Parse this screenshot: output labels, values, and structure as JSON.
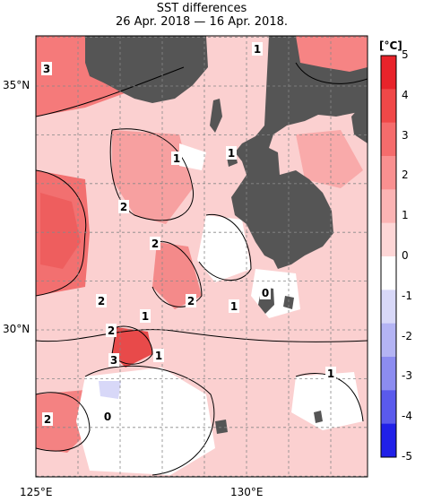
{
  "title_line1": "SST differences",
  "title_line2": "26 Apr. 2018 — 16 Apr. 2018.",
  "unit": "[°C]",
  "lat_labels": [
    {
      "text": "35°N",
      "lat": 35
    },
    {
      "text": "30°N",
      "lat": 30
    }
  ],
  "lon_labels": [
    {
      "text": "125°E",
      "lon": 125
    },
    {
      "text": "130°E",
      "lon": 130
    }
  ],
  "colorbar": {
    "ticks": [
      "5",
      "4",
      "3",
      "2",
      "1",
      "0",
      "-1",
      "-2",
      "-3",
      "-4",
      "-5"
    ],
    "colors": [
      "#e8232a",
      "#f04848",
      "#f56c6c",
      "#f99090",
      "#fbb4b4",
      "#fdd6d6",
      "#ffffff",
      "#d8d8f8",
      "#b4b4f4",
      "#8c8cf0",
      "#5a5aec",
      "#2020e8"
    ]
  },
  "contour_labels": [
    "3",
    "1",
    "1",
    "1",
    "2",
    "2",
    "2",
    "2",
    "1",
    "1",
    "0",
    "2",
    "3",
    "1",
    "1",
    "2",
    "0"
  ],
  "colors": {
    "land": "#555555",
    "sea_warm": "#f8c8c8",
    "sea_hot": "#f07070",
    "grid": "#999999"
  }
}
